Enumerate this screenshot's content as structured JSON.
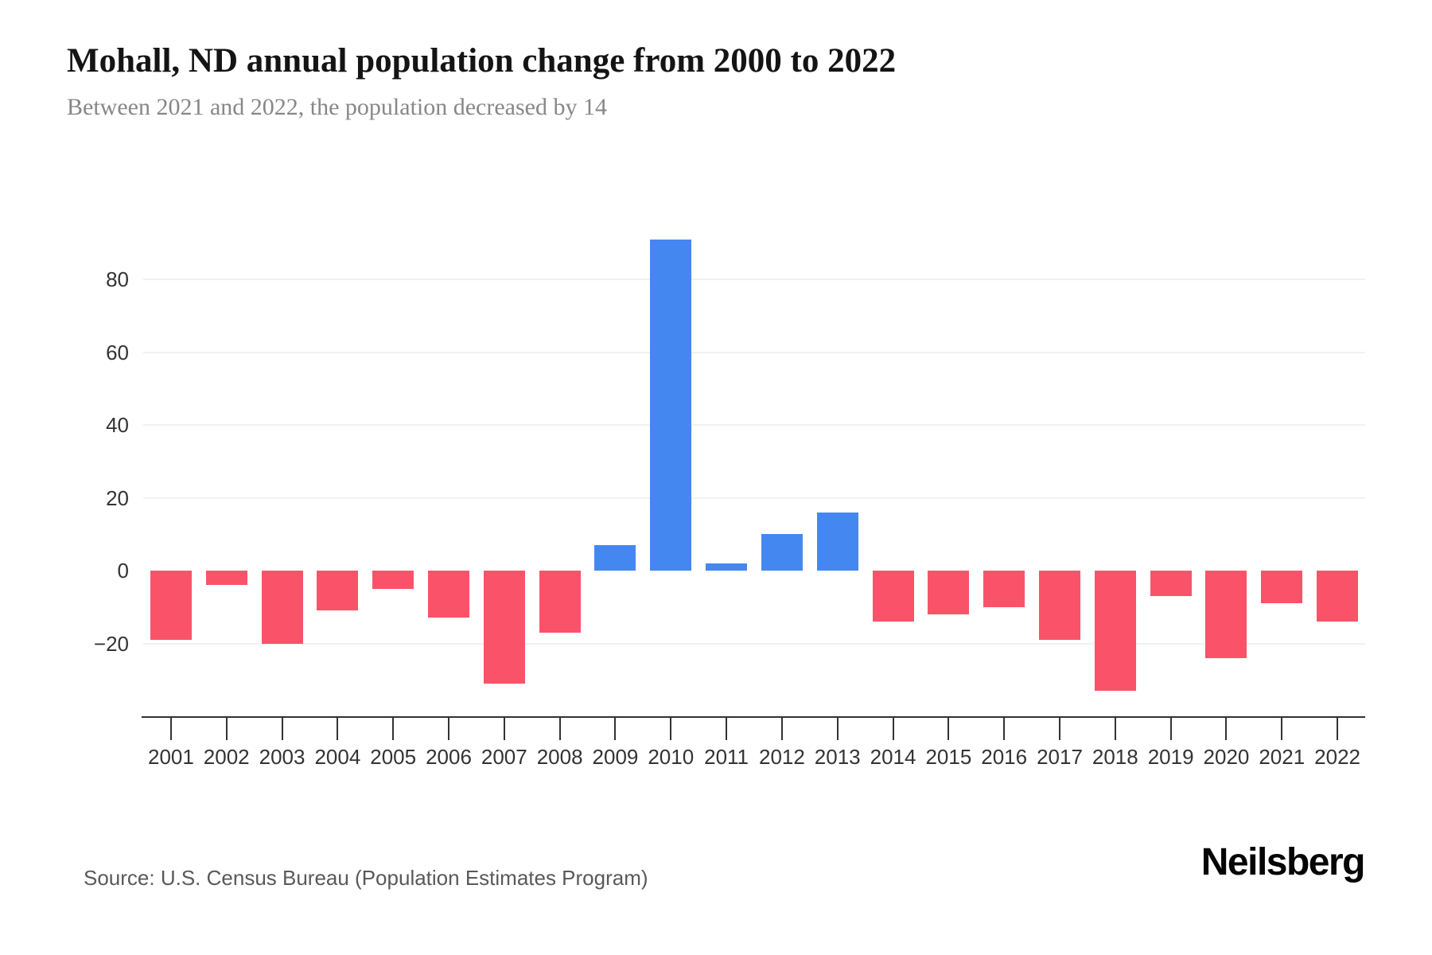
{
  "header": {
    "title": "Mohall, ND annual population change from 2000 to 2022",
    "subtitle": "Between 2021 and 2022, the population decreased by 14"
  },
  "footer": {
    "source": "Source: U.S. Census Bureau (Population Estimates Program)",
    "brand": "Neilsberg"
  },
  "chart_data": {
    "type": "bar",
    "title": "Mohall, ND annual population change from 2000 to 2022",
    "subtitle": "Between 2021 and 2022, the population decreased by 14",
    "categories": [
      "2001",
      "2002",
      "2003",
      "2004",
      "2005",
      "2006",
      "2007",
      "2008",
      "2009",
      "2010",
      "2011",
      "2012",
      "2013",
      "2014",
      "2015",
      "2016",
      "2017",
      "2018",
      "2019",
      "2020",
      "2021",
      "2022"
    ],
    "values": [
      -19,
      -4,
      -20,
      -11,
      -5,
      -13,
      -31,
      -17,
      7,
      91,
      2,
      10,
      16,
      -14,
      -12,
      -10,
      -19,
      -33,
      -7,
      -24,
      -9,
      -14
    ],
    "xlabel": "",
    "ylabel": "",
    "ylim": [
      -40,
      100
    ],
    "yticks": [
      {
        "label": "80",
        "value": 80
      },
      {
        "label": "60",
        "value": 60
      },
      {
        "label": "40",
        "value": 40
      },
      {
        "label": "20",
        "value": 20
      },
      {
        "label": "0",
        "value": 0
      },
      {
        "label": "−20",
        "value": -20
      }
    ],
    "gridline_values": [
      80,
      60,
      40,
      20,
      -20
    ],
    "grid": true,
    "legend": false,
    "colors": {
      "positive": "#4587f0",
      "negative": "#fa5369",
      "gridline": "#f1f1f1",
      "axis": "#333333",
      "tick_label": "#333333"
    },
    "source": "Source: U.S. Census Bureau (Population Estimates Program)"
  }
}
